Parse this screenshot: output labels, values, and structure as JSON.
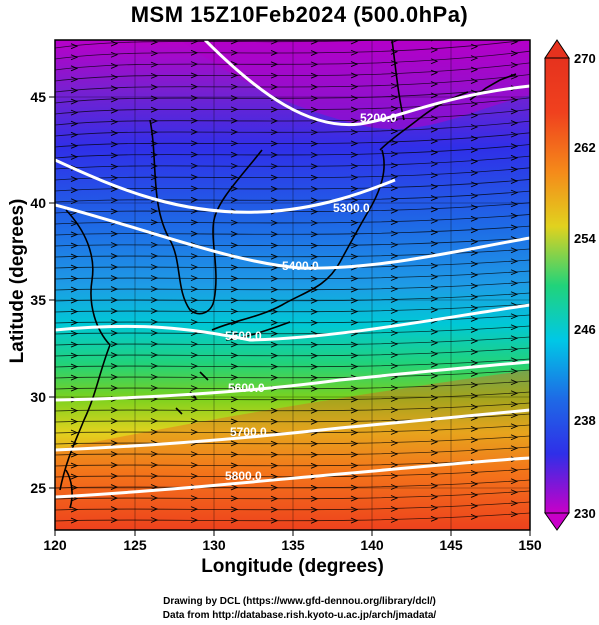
{
  "title": "MSM 15Z10Feb2024 (500.0hPa)",
  "x_axis": {
    "label": "Longitude (degrees)",
    "range": [
      120,
      150
    ],
    "ticks": [
      "120",
      "125",
      "130",
      "135",
      "140",
      "145",
      "150"
    ]
  },
  "y_axis": {
    "label": "Latitude  (degrees)",
    "range": [
      22.4,
      47.6
    ],
    "ticks": [
      "25",
      "30",
      "35",
      "40",
      "45"
    ]
  },
  "colorbar": {
    "range": [
      230,
      270
    ],
    "ticks": [
      "270",
      "262",
      "254",
      "246",
      "238",
      "230"
    ],
    "colors": [
      "#c800c8",
      "#7a1fd0",
      "#2f2fe8",
      "#1e6ae6",
      "#00c8e6",
      "#21d37a",
      "#7ad21e",
      "#e1d21e",
      "#f58a1a",
      "#f0411e",
      "#e6321e"
    ]
  },
  "contours": [
    {
      "label": "5200.0"
    },
    {
      "label": "5300.0"
    },
    {
      "label": "5400.0"
    },
    {
      "label": "5500.0"
    },
    {
      "label": "5600.0"
    },
    {
      "label": "5700.0"
    },
    {
      "label": "5800.0"
    }
  ],
  "credits": {
    "line1": "Drawing by DCL (https://www.gfd-dennou.org/library/dcl/)",
    "line2": "Data from http://database.rish.kyoto-u.ac.jp/arch/jmadata/"
  }
}
